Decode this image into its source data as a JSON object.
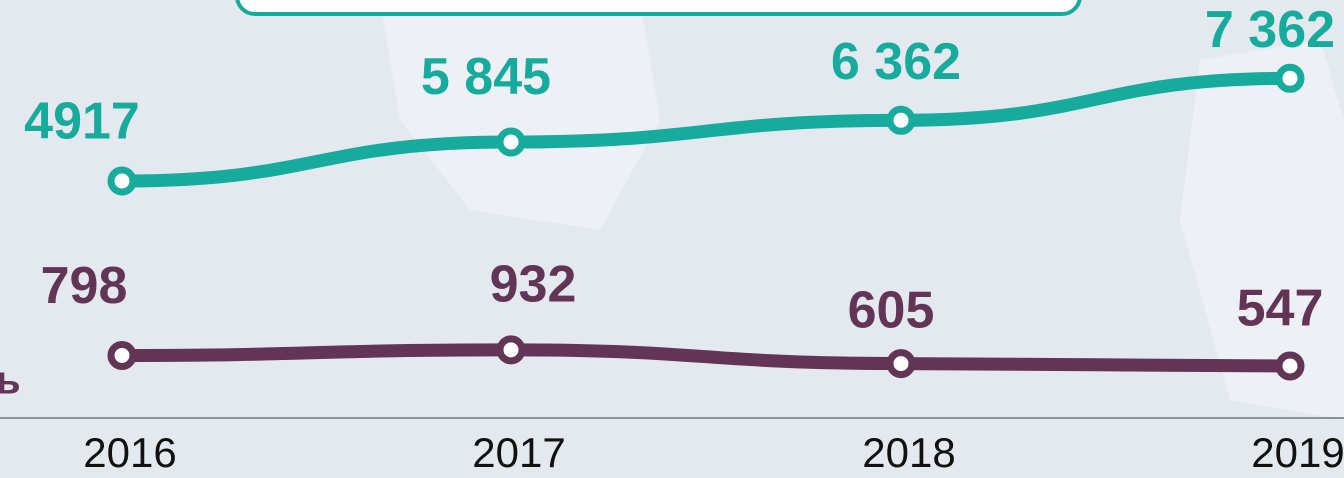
{
  "chart_data": {
    "type": "line",
    "categories": [
      "2016",
      "2017",
      "2018",
      "2019"
    ],
    "series": [
      {
        "color": "#17ab9d",
        "values": [
          4917,
          5845,
          6362,
          7362
        ],
        "value_labels": [
          "4917",
          "5 845",
          "6 362",
          "7 362"
        ]
      },
      {
        "color": "#623456",
        "values": [
          798,
          932,
          605,
          547
        ]
      }
    ],
    "side_label": "ь"
  }
}
